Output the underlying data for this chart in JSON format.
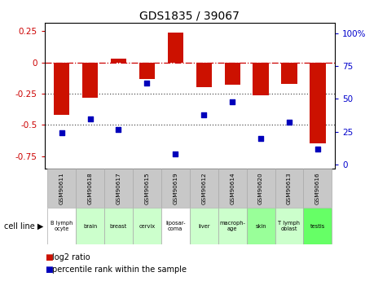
{
  "title": "GDS1835 / 39067",
  "samples": [
    "GSM90611",
    "GSM90618",
    "GSM90617",
    "GSM90615",
    "GSM90619",
    "GSM90612",
    "GSM90614",
    "GSM90620",
    "GSM90613",
    "GSM90616"
  ],
  "cell_lines": [
    "B lymph\nocyte",
    "brain",
    "breast",
    "cervix",
    "liposar-\ncoma",
    "liver",
    "macroph-\nage",
    "skin",
    "T lymph\noblast",
    "testis"
  ],
  "cell_line_colors": [
    "#ffffff",
    "#ccffcc",
    "#ccffcc",
    "#ccffcc",
    "#ffffff",
    "#ccffcc",
    "#ccffcc",
    "#99ff99",
    "#ccffcc",
    "#66ff66"
  ],
  "log2_ratio": [
    -0.42,
    -0.28,
    0.03,
    -0.13,
    0.24,
    -0.2,
    -0.18,
    -0.26,
    -0.17,
    -0.65
  ],
  "percentile_rank": [
    24,
    35,
    27,
    62,
    8,
    38,
    48,
    20,
    32,
    12
  ],
  "bar_color": "#cc1100",
  "dot_color": "#0000bb",
  "ylim_left": [
    -0.85,
    0.32
  ],
  "ylim_right": [
    -3.0,
    108.0
  ],
  "yticks_left": [
    -0.75,
    -0.5,
    -0.25,
    0,
    0.25
  ],
  "yticks_right": [
    0,
    25,
    50,
    75,
    100
  ],
  "ytick_labels_left": [
    "-0.75",
    "-0.5",
    "-0.25",
    "0",
    "0.25"
  ],
  "ytick_labels_right": [
    "0",
    "25",
    "50",
    "75",
    "100%"
  ],
  "hline_zero": 0.0,
  "hline_dotted1": -0.25,
  "hline_dotted2": -0.5,
  "legend_log2": "log2 ratio",
  "legend_pct": "percentile rank within the sample",
  "cell_line_label": "cell line"
}
